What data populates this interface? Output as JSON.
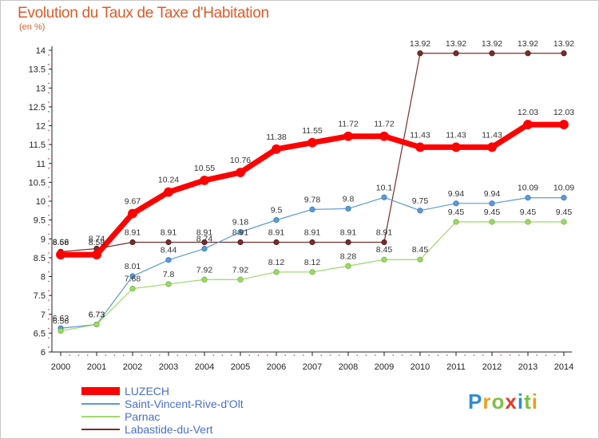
{
  "header": {
    "title": "Evolution du Taux de Taxe d'Habitation",
    "subtitle": "(en %)"
  },
  "logo": {
    "text": "Proxiti",
    "colors": [
      "#2e8bd8",
      "#e8a123",
      "#7cc242",
      "#e23b2b",
      "#2e8bd8",
      "#7cc242",
      "#e8a123"
    ]
  },
  "chart_data": {
    "type": "line",
    "title": "Evolution du Taux de Taxe d'Habitation",
    "subtitle": "(en %)",
    "x": [
      "2000",
      "2001",
      "2002",
      "2003",
      "2004",
      "2005",
      "2006",
      "2007",
      "2008",
      "2009",
      "2010",
      "2011",
      "2012",
      "2013",
      "2014"
    ],
    "ylim": [
      6,
      14
    ],
    "yticks": [
      "6",
      "6.5",
      "7",
      "7.5",
      "8",
      "8.5",
      "9",
      "9.5",
      "10",
      "10.5",
      "11",
      "11.5",
      "12",
      "12.5",
      "13",
      "13.5",
      "14"
    ],
    "grid": false,
    "legend_position": "bottom-left",
    "series": [
      {
        "name": "LUZECH",
        "color": "#ff0000",
        "values": [
          8.58,
          8.58,
          9.67,
          10.24,
          10.55,
          10.76,
          11.38,
          11.55,
          11.72,
          11.72,
          11.43,
          11.43,
          11.43,
          12.03,
          12.03
        ],
        "labels": [
          "8.58",
          "8.58",
          "9.67",
          "10.24",
          "10.55",
          "10.76",
          "11.38",
          "11.55",
          "11.72",
          "11.72",
          "11.43",
          "11.43",
          "11.43",
          "12.03",
          "12.03"
        ]
      },
      {
        "name": "Saint-Vincent-Rive-d'Olt",
        "color": "#5b9bd5",
        "values": [
          6.63,
          6.73,
          8.01,
          8.44,
          8.74,
          9.18,
          9.5,
          9.78,
          9.8,
          10.1,
          9.75,
          9.94,
          9.94,
          10.09,
          10.09
        ],
        "labels": [
          "6.63",
          "6.73",
          "8.01",
          "8.44",
          "8.74",
          "9.18",
          "9.5",
          "9.78",
          "9.8",
          "10.1",
          "9.75",
          "9.94",
          "9.94",
          "10.09",
          "10.09"
        ]
      },
      {
        "name": "Parnac",
        "color": "#9ed86a",
        "values": [
          6.56,
          6.73,
          7.68,
          7.8,
          7.92,
          7.92,
          8.12,
          8.12,
          8.28,
          8.45,
          8.45,
          9.45,
          9.45,
          9.45,
          9.45
        ],
        "labels": [
          "6.56",
          "6.73",
          "7.68",
          "7.8",
          "7.92",
          "7.92",
          "8.12",
          "8.12",
          "8.28",
          "8.45",
          "8.45",
          "9.45",
          "9.45",
          "9.45",
          "9.45"
        ]
      },
      {
        "name": "Labastide-du-Vert",
        "color": "#7a2e2e",
        "values": [
          8.66,
          8.74,
          8.91,
          8.91,
          8.91,
          8.91,
          8.91,
          8.91,
          8.91,
          8.91,
          13.92,
          13.92,
          13.92,
          13.92,
          13.92
        ],
        "labels": [
          "8.66",
          "8.74",
          "8.91",
          "8.91",
          "8.91",
          "8.91",
          "8.91",
          "8.91",
          "8.91",
          "8.91",
          "13.92",
          "13.92",
          "13.92",
          "13.92",
          "13.92"
        ]
      }
    ]
  }
}
